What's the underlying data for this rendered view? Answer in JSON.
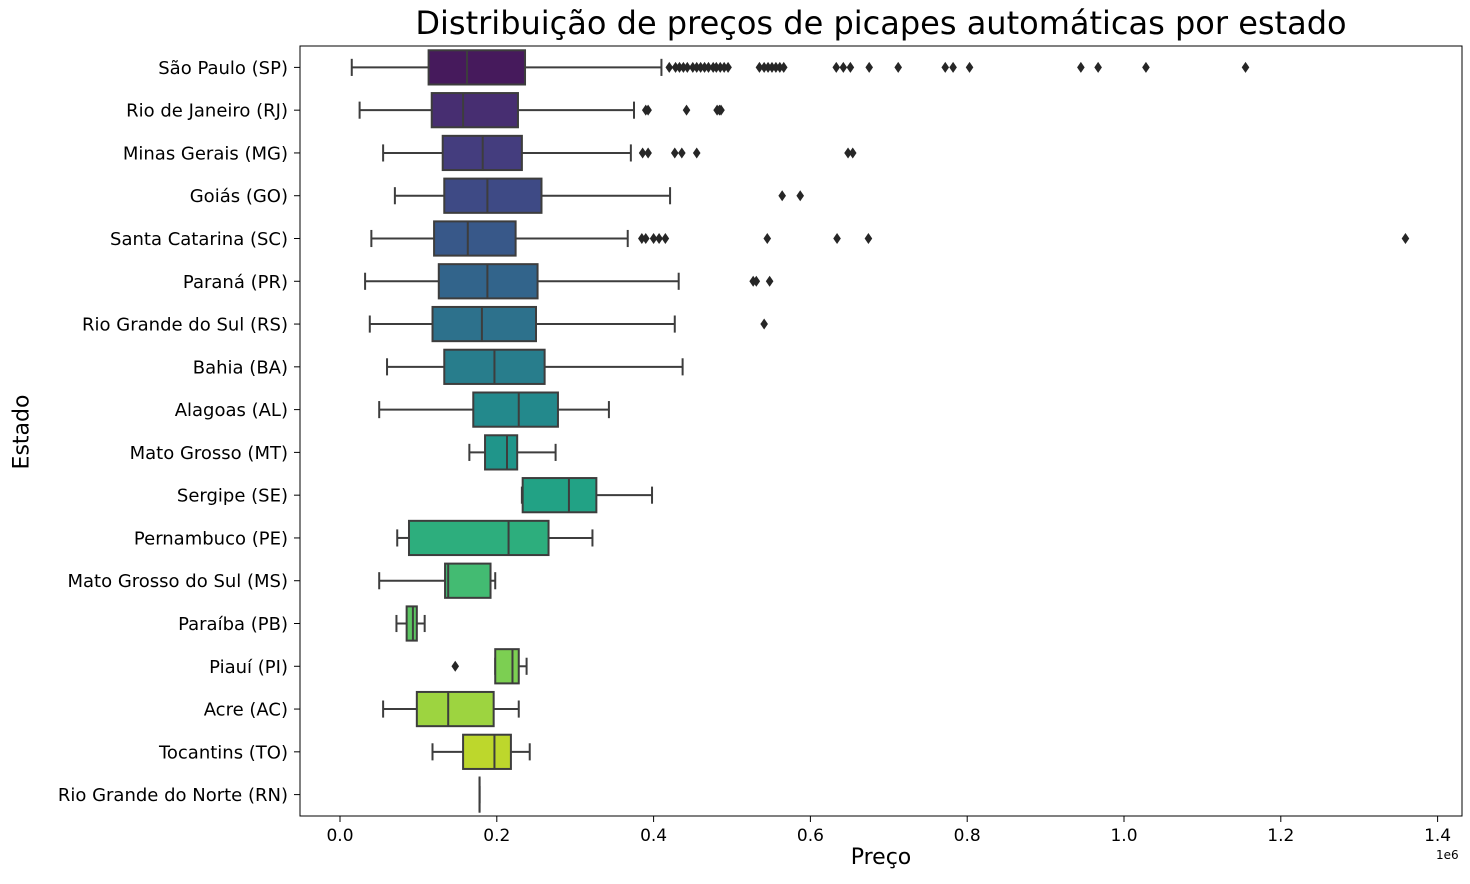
{
  "chart_data": {
    "type": "boxplot",
    "title": "Distribuição de preços de picapes automáticas por estado",
    "xlabel": "Preço",
    "ylabel": "Estado",
    "x_offset_label": "1e6",
    "xlim": [
      -55000,
      1425000
    ],
    "xticks": [
      0,
      200000,
      400000,
      600000,
      800000,
      1000000,
      1200000,
      1400000
    ],
    "xtick_labels": [
      "0.0",
      "0.2",
      "0.4",
      "0.6",
      "0.8",
      "1.0",
      "1.2",
      "1.4"
    ],
    "grid": false,
    "legend": "none",
    "palette": "viridis",
    "categories": [
      {
        "label": "São Paulo (SP)",
        "color": "#461a5c",
        "whislo": 15000,
        "q1": 113000,
        "med": 162000,
        "q3": 236000,
        "whishi": 410000,
        "fliers": [
          420000,
          428000,
          433000,
          438000,
          443000,
          450000,
          455000,
          460000,
          465000,
          470000,
          476000,
          480000,
          485000,
          490000,
          495000,
          535000,
          541000,
          546000,
          551000,
          556000,
          561000,
          566000,
          633000,
          642000,
          651000,
          675000,
          712000,
          772000,
          782000,
          803000,
          945000,
          967000,
          1028000,
          1155000
        ]
      },
      {
        "label": "Rio de Janeiro (RJ)",
        "color": "#472e71",
        "whislo": 25000,
        "q1": 117000,
        "med": 157000,
        "q3": 227000,
        "whishi": 375000,
        "fliers": [
          390000,
          393000,
          442000,
          481000,
          484000,
          486000
        ]
      },
      {
        "label": "Minas Gerais (MG)",
        "color": "#443d7e",
        "whislo": 55000,
        "q1": 131000,
        "med": 182000,
        "q3": 232000,
        "whishi": 371000,
        "fliers": [
          386000,
          393000,
          427000,
          436000,
          455000,
          648000,
          654000
        ]
      },
      {
        "label": "Goiás (GO)",
        "color": "#3e4a85",
        "whislo": 70000,
        "q1": 133000,
        "med": 188000,
        "q3": 257000,
        "whishi": 421000,
        "fliers": [
          564000,
          587000
        ]
      },
      {
        "label": "Santa Catarina (SC)",
        "color": "#385889",
        "whislo": 40000,
        "q1": 120000,
        "med": 163000,
        "q3": 224000,
        "whishi": 367000,
        "fliers": [
          385000,
          390000,
          400000,
          407000,
          415000,
          545000,
          634000,
          674000,
          1359000
        ]
      },
      {
        "label": "Paraná (PR)",
        "color": "#32648b",
        "whislo": 32000,
        "q1": 126000,
        "med": 188000,
        "q3": 252000,
        "whishi": 432000,
        "fliers": [
          527000,
          531000,
          548000
        ]
      },
      {
        "label": "Rio Grande do Sul (RS)",
        "color": "#2d718c",
        "whislo": 38000,
        "q1": 118000,
        "med": 181000,
        "q3": 250000,
        "whishi": 427000,
        "fliers": [
          541000
        ]
      },
      {
        "label": "Bahia (BA)",
        "color": "#287d8c",
        "whislo": 60000,
        "q1": 133000,
        "med": 197000,
        "q3": 261000,
        "whishi": 437000,
        "fliers": []
      },
      {
        "label": "Alagoas (AL)",
        "color": "#23898c",
        "whislo": 50000,
        "q1": 170000,
        "med": 228000,
        "q3": 278000,
        "whishi": 343000,
        "fliers": []
      },
      {
        "label": "Mato Grosso (MT)",
        "color": "#20958a",
        "whislo": 165000,
        "q1": 185000,
        "med": 213000,
        "q3": 226000,
        "whishi": 275000,
        "fliers": []
      },
      {
        "label": "Sergipe (SE)",
        "color": "#22a285",
        "whislo": 232000,
        "q1": 233000,
        "med": 292000,
        "q3": 327000,
        "whishi": 398000,
        "fliers": []
      },
      {
        "label": "Pernambuco (PE)",
        "color": "#2dae7d",
        "whislo": 73000,
        "q1": 88000,
        "med": 215000,
        "q3": 266000,
        "whishi": 322000,
        "fliers": []
      },
      {
        "label": "Mato Grosso do Sul (MS)",
        "color": "#43bb72",
        "whislo": 50000,
        "q1": 134000,
        "med": 138000,
        "q3": 192000,
        "whishi": 198000,
        "fliers": []
      },
      {
        "label": "Paraíba (PB)",
        "color": "#5dc563",
        "whislo": 72000,
        "q1": 85000,
        "med": 93000,
        "q3": 98000,
        "whishi": 108000,
        "fliers": []
      },
      {
        "label": "Piauí (PI)",
        "color": "#7ccf52",
        "whislo": 198000,
        "q1": 198000,
        "med": 220000,
        "q3": 228000,
        "whishi": 238000,
        "fliers": [
          147000
        ]
      },
      {
        "label": "Acre (AC)",
        "color": "#9dd440",
        "whislo": 55000,
        "q1": 98000,
        "med": 138000,
        "q3": 196000,
        "whishi": 228000,
        "fliers": []
      },
      {
        "label": "Tocantins (TO)",
        "color": "#bdd72c",
        "whislo": 118000,
        "q1": 157000,
        "med": 197000,
        "q3": 218000,
        "whishi": 242000,
        "fliers": []
      },
      {
        "label": "Rio Grande do Norte (RN)",
        "color": "#dcd820",
        "whislo": 178000,
        "q1": 178000,
        "med": 178000,
        "q3": 178000,
        "whishi": 178000,
        "fliers": []
      }
    ]
  }
}
